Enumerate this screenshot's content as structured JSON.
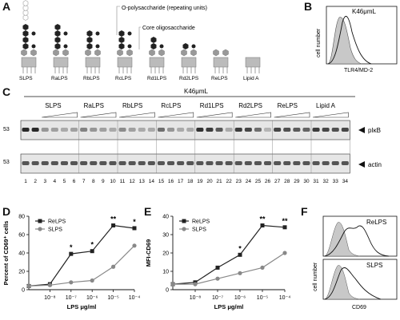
{
  "panels": {
    "A": {
      "letter": "A",
      "label_o": "O-polysaccharide (repeating units)",
      "label_core": "Core oligosaccharide",
      "lps_types": [
        "SLPS",
        "RaLPS",
        "RbLPS",
        "RcLPS",
        "Rd1LPS",
        "Rd2LPS",
        "ReLPS",
        "Lipid A"
      ]
    },
    "B": {
      "letter": "B",
      "cell_line": "K46μmL",
      "ylabel": "cell number",
      "xlabel": "TLR4/MD-2"
    },
    "C": {
      "letter": "C",
      "cell_line": "K46μmL",
      "groups": [
        "SLPS",
        "RaLPS",
        "RbLPS",
        "RcLPS",
        "Rd1LPS",
        "Rd2LPS",
        "ReLPS",
        "Lipid A"
      ],
      "mw_marker": "53",
      "band_labels": [
        "pIκB",
        "actin"
      ],
      "lane_numbers": [
        "1",
        "2",
        "3",
        "4",
        "5",
        "6",
        "7",
        "8",
        "9",
        "10",
        "11",
        "12",
        "13",
        "14",
        "15",
        "16",
        "17",
        "18",
        "19",
        "20",
        "21",
        "22",
        "23",
        "24",
        "25",
        "26",
        "27",
        "28",
        "29",
        "30",
        "31",
        "32",
        "33",
        "34"
      ]
    },
    "D": {
      "letter": "D"
    },
    "E": {
      "letter": "E"
    },
    "F": {
      "letter": "F",
      "ylabel": "cell number",
      "xlabel": "CD69",
      "top_label": "ReLPS",
      "bottom_label": "SLPS"
    }
  },
  "chart_data": [
    {
      "type": "line",
      "panel": "D",
      "ylabel": "Percent of CD69⁺ cells",
      "xlabel": "LPS μg/ml",
      "x_scale": "log",
      "x_ticks": [
        "10⁻⁸",
        "10⁻⁷",
        "10⁻⁶",
        "10⁻⁵",
        "10⁻⁴"
      ],
      "ylim": [
        0,
        80
      ],
      "y_ticks": [
        "0",
        "20",
        "40",
        "60",
        "80"
      ],
      "x": [
        1e-09,
        1e-08,
        1e-07,
        1e-06,
        1e-05,
        0.0001
      ],
      "series": [
        {
          "name": "ReLPS",
          "values": [
            4,
            6,
            39,
            42,
            70,
            67
          ],
          "color": "#222222",
          "marker": "square"
        },
        {
          "name": "SLPS",
          "values": [
            4,
            5,
            8,
            10,
            25,
            48
          ],
          "color": "#888888",
          "marker": "circle"
        }
      ],
      "significance": [
        {
          "x": 1e-07,
          "label": "*"
        },
        {
          "x": 1e-06,
          "label": "*"
        },
        {
          "x": 1e-05,
          "label": "**"
        },
        {
          "x": 0.0001,
          "label": "*"
        }
      ],
      "legend": "top-left"
    },
    {
      "type": "line",
      "panel": "E",
      "ylabel": "MFI-CD69",
      "xlabel": "LPS μg/ml",
      "x_scale": "log",
      "x_ticks": [
        "10⁻⁸",
        "10⁻⁷",
        "10⁻⁶",
        "10⁻⁵",
        "10⁻⁴"
      ],
      "ylim": [
        0,
        40
      ],
      "y_ticks": [
        "0",
        "10",
        "20",
        "30",
        "40"
      ],
      "x": [
        1e-09,
        1e-08,
        1e-07,
        1e-06,
        1e-05,
        0.0001
      ],
      "series": [
        {
          "name": "ReLPS",
          "values": [
            3,
            4,
            12,
            19,
            35,
            34
          ],
          "color": "#222222",
          "marker": "square"
        },
        {
          "name": "SLPS",
          "values": [
            3,
            3,
            6,
            9,
            12,
            20
          ],
          "color": "#888888",
          "marker": "circle"
        }
      ],
      "significance": [
        {
          "x": 1e-06,
          "label": "*"
        },
        {
          "x": 1e-05,
          "label": "**"
        },
        {
          "x": 0.0001,
          "label": "**"
        }
      ],
      "legend": "top-left"
    }
  ]
}
